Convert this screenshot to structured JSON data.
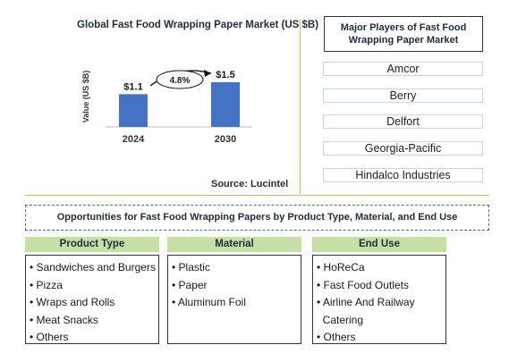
{
  "chart_data": {
    "type": "bar",
    "title": "Global Fast Food Wrapping Paper Market (US $B)",
    "ylabel": "Value (US $B)",
    "categories": [
      "2024",
      "2030"
    ],
    "values": [
      1.1,
      1.5
    ],
    "value_labels": [
      "$1.1",
      "$1.5"
    ],
    "growth_label": "4.8%",
    "source": "Source: Lucintel",
    "bar_color": "#4472c4"
  },
  "players": {
    "title": "Major Players of Fast Food Wrapping Paper Market",
    "items": [
      "Amcor",
      "Berry",
      "Delfort",
      "Georgia-Pacific",
      "Hindalco Industries"
    ]
  },
  "opportunities": {
    "title": "Opportunities for Fast Food Wrapping Papers by Product Type, Material, and End Use",
    "categories": [
      {
        "header": "Product Type",
        "items": [
          "• Sandwiches and Burgers",
          "• Pizza",
          "• Wraps and Rolls",
          "• Meat Snacks",
          "• Others"
        ]
      },
      {
        "header": "Material",
        "items": [
          "• Plastic",
          "• Paper",
          "• Aluminum Foil"
        ]
      },
      {
        "header": "End Use",
        "items": [
          "• HoReCa",
          "• Fast Food Outlets",
          "• Airline And Railway",
          "  Catering",
          "• Others"
        ]
      }
    ]
  }
}
